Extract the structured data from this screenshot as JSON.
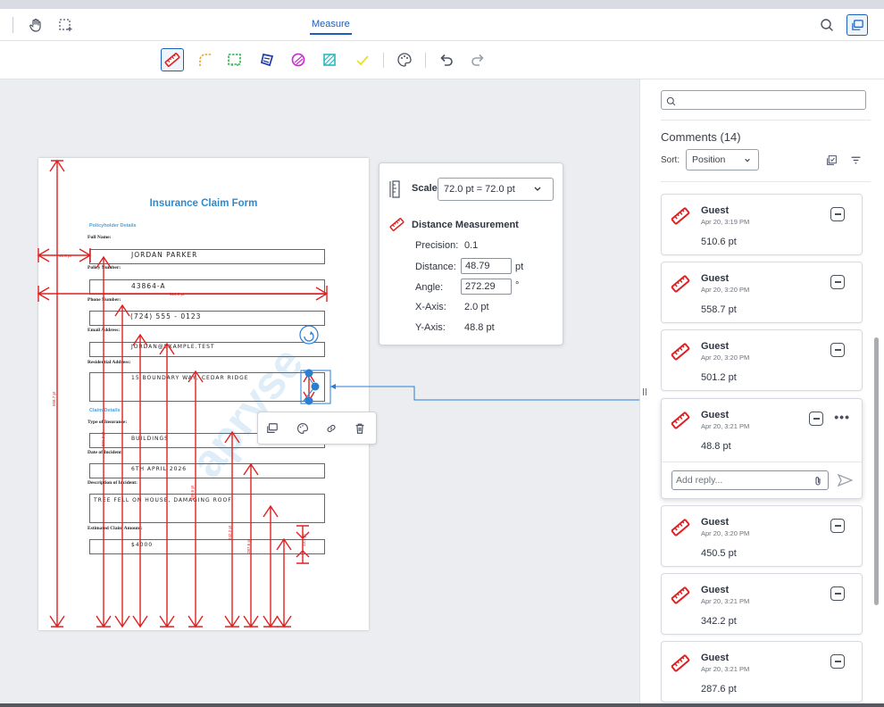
{
  "header": {
    "active_tab": "Measure"
  },
  "toolbar": {
    "tools": [
      "distance-measurement",
      "arc-measurement",
      "rectangular-area-measurement",
      "polygon-area-measurement",
      "ellipse-area-measurement",
      "area-measurement",
      "eraser"
    ]
  },
  "document": {
    "title": "Insurance Claim Form",
    "section_policyholder": "Policyholder Details",
    "section_claim": "Claim Details",
    "labels": {
      "full_name": "Full Name:",
      "policy_number": "Policy Number:",
      "phone_number": "Phone Number:",
      "email_address": "Email Address:",
      "residential_address": "Residential Address:",
      "type_of_insurance": "Type of Insurance:",
      "date_of_incident": "Date of Incident:",
      "description": "Description of Incident:",
      "estimated_amount": "Estimated Claim Amount:"
    },
    "values": {
      "full_name": "JORDAN PARKER",
      "policy_number": "43864-A",
      "phone_number": "(724) 555 - 0123",
      "email_address": "JORDAN@EXAMPLE.TEST",
      "residential_address": "15 BOUNDARY WAY, CEDAR RIDGE",
      "type_of_insurance": "BUILDINGS",
      "date_of_incident": "6TH APRIL 2026",
      "description": "TREE FELL ON HOUSE, DAMAGING ROOF",
      "estimated_amount": "$4000"
    },
    "measure_labels": [
      "41.6 pt",
      "510.6 pt",
      "558.7 pt",
      "501.2 pt",
      "450.5 pt",
      "342.2 pt",
      "287.6 pt",
      "23.4 pt"
    ],
    "watermark": "apryse"
  },
  "measure_popup": {
    "scale_label": "Scale",
    "scale_value": "72.0 pt = 72.0 pt",
    "type_label": "Distance Measurement",
    "precision_label": "Precision:",
    "precision_value": "0.1",
    "distance_label": "Distance:",
    "distance_value": "48.79",
    "distance_unit": "pt",
    "angle_label": "Angle:",
    "angle_value": "272.29",
    "angle_unit": "°",
    "x_axis_label": "X-Axis:",
    "x_axis_value": "2.0 pt",
    "y_axis_label": "Y-Axis:",
    "y_axis_value": "48.8 pt"
  },
  "panel": {
    "search_placeholder": "",
    "comments_title": "Comments (14)",
    "sort_label": "Sort:",
    "sort_value": "Position",
    "reply_placeholder": "Add reply...",
    "comments": [
      {
        "author": "Guest",
        "date": "Apr 20, 3:19 PM",
        "value": "510.6 pt"
      },
      {
        "author": "Guest",
        "date": "Apr 20, 3:20 PM",
        "value": "558.7 pt"
      },
      {
        "author": "Guest",
        "date": "Apr 20, 3:20 PM",
        "value": "501.2 pt"
      },
      {
        "author": "Guest",
        "date": "Apr 20, 3:21 PM",
        "value": "48.8 pt"
      },
      {
        "author": "Guest",
        "date": "Apr 20, 3:20 PM",
        "value": "450.5 pt"
      },
      {
        "author": "Guest",
        "date": "Apr 20, 3:21 PM",
        "value": "342.2 pt"
      },
      {
        "author": "Guest",
        "date": "Apr 20, 3:21 PM",
        "value": "287.6 pt"
      }
    ]
  },
  "colors": {
    "accent": "#1c5fb8",
    "measure_red": "#e02020",
    "selection_blue": "#2a7fd4"
  }
}
